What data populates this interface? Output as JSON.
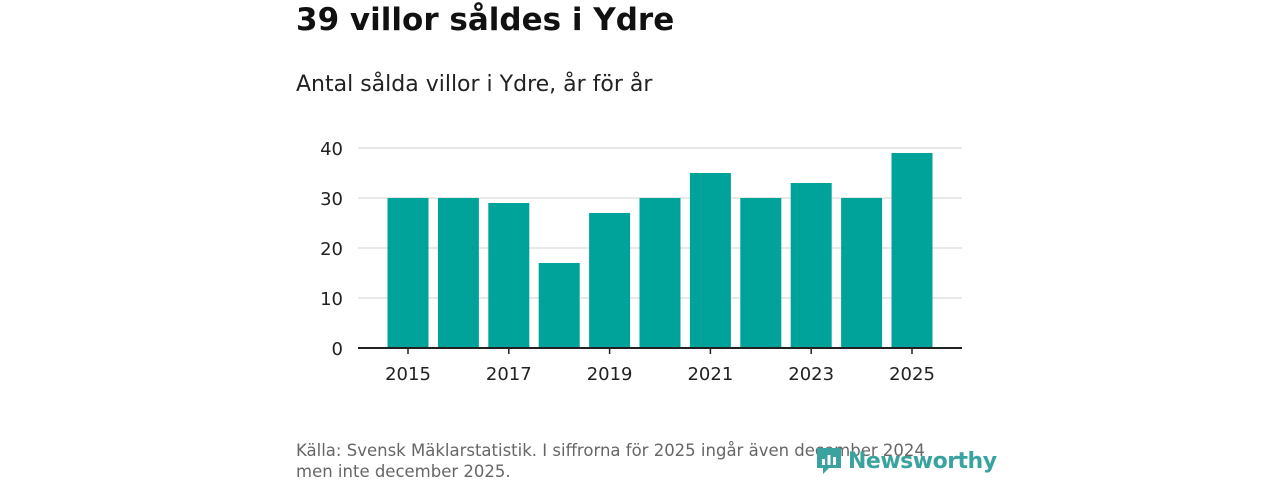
{
  "header": {
    "title": "39 villor såldes i Ydre",
    "subtitle": "Antal sålda villor i Ydre, år för år"
  },
  "chart_data": {
    "type": "bar",
    "title": "39 villor såldes i Ydre",
    "subtitle": "Antal sålda villor i Ydre, år för år",
    "xlabel": "",
    "ylabel": "",
    "categories": [
      "2015",
      "2016",
      "2017",
      "2018",
      "2019",
      "2020",
      "2021",
      "2022",
      "2023",
      "2024",
      "2025"
    ],
    "values": [
      30,
      30,
      29,
      17,
      27,
      30,
      35,
      30,
      33,
      30,
      39
    ],
    "x_tick_labels": [
      "2015",
      "2017",
      "2019",
      "2021",
      "2023",
      "2025"
    ],
    "y_ticks": [
      0,
      10,
      20,
      30,
      40
    ],
    "ylim": [
      0,
      40
    ],
    "grid": true,
    "bar_color": "#00a39a"
  },
  "footer": {
    "source_line1": "Källa: Svensk Mäklarstatistik. I siffrorna för 2025 ingår även december 2024",
    "source_line2": "men inte december 2025.",
    "logo_text": "Newsworthy",
    "logo_icon": "newsworthy-logo-icon",
    "logo_color": "#3aa3a0"
  }
}
